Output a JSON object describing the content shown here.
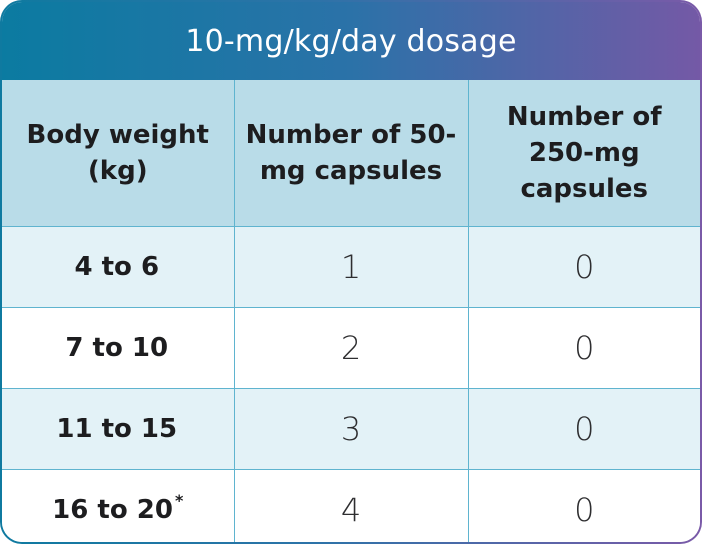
{
  "title": "10-mg/kg/day dosage",
  "headers": {
    "col1": "Body weight (kg)",
    "col2": "Number of 50-mg capsules",
    "col3": "Number of 250-mg capsules"
  },
  "rows": [
    {
      "weight": "4 to 6",
      "footnote": "",
      "caps50": "1",
      "caps250": "0"
    },
    {
      "weight": "7 to 10",
      "footnote": "",
      "caps50": "2",
      "caps250": "0"
    },
    {
      "weight": "11 to 15",
      "footnote": "",
      "caps50": "3",
      "caps250": "0"
    },
    {
      "weight": "16 to 20",
      "footnote": "*",
      "caps50": "4",
      "caps250": "0"
    }
  ],
  "colors": {
    "title_gradient_start": "#0b7ba1",
    "title_gradient_end": "#7459a6",
    "header_bg": "#b9dce8",
    "row_alt_bg": "#e3f2f7",
    "grid_line": "#5fb4cf"
  }
}
